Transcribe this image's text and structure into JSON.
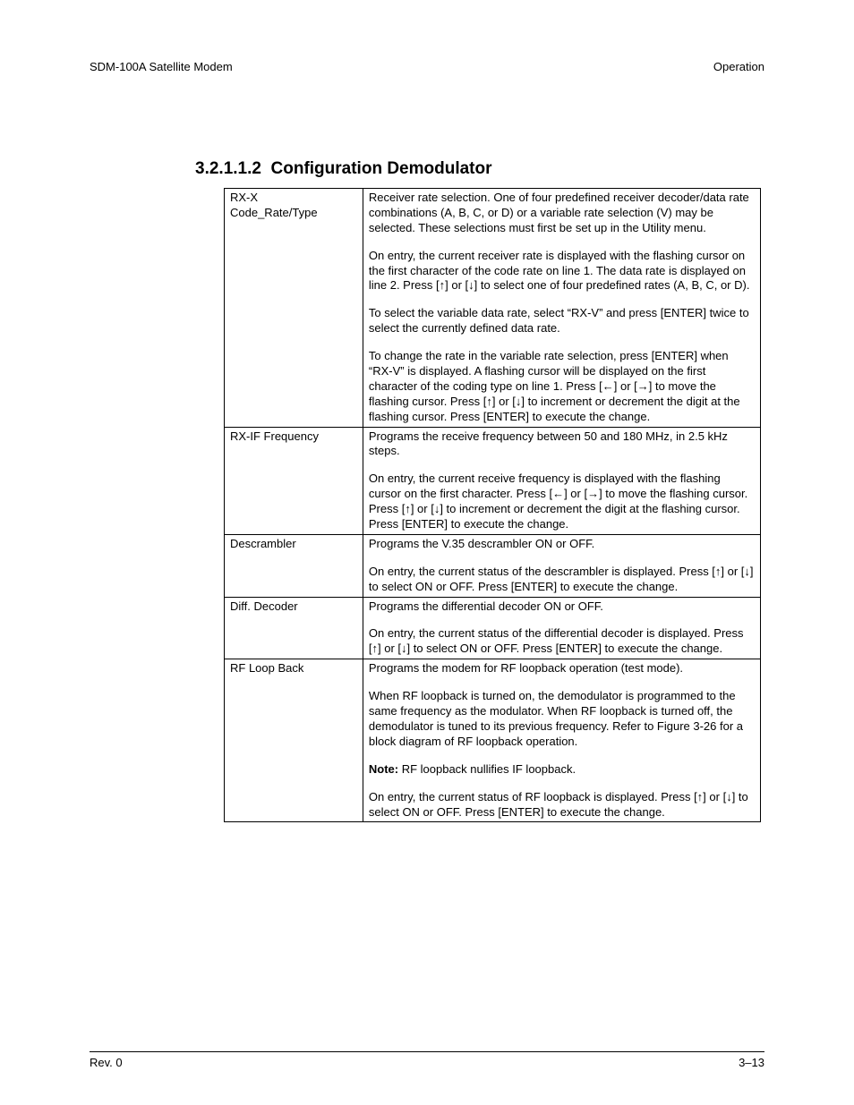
{
  "header": {
    "left": "SDM-100A Satellite Modem",
    "right": "Operation"
  },
  "section": {
    "number": "3.2.1.1.2",
    "title": "Configuration Demodulator"
  },
  "rows": [
    {
      "label": "RX-X\nCode_Rate/Type",
      "paragraphs": [
        "Receiver rate selection. One of four predefined receiver decoder/data rate combinations (A, B, C, or D) or a variable rate selection (V) may be selected. These selections must first be set up in the Utility menu.",
        "On entry, the current receiver rate is displayed with the flashing cursor on the first character of the code rate on line 1. The data rate is displayed on line 2. Press [↑] or [↓] to select one of four predefined rates (A, B, C, or D).",
        "To select the variable data rate, select “RX-V” and press [ENTER] twice to select the currently defined data rate.",
        "To change the rate in the variable rate selection, press [ENTER] when “RX-V” is displayed. A flashing cursor will be displayed on the first character of the coding type on line 1. Press [←] or [→] to move the flashing cursor. Press [↑] or [↓] to increment or decrement the digit at the flashing cursor. Press [ENTER] to execute the change."
      ]
    },
    {
      "label": "RX-IF Frequency",
      "paragraphs": [
        "Programs the receive frequency between 50 and 180 MHz, in 2.5 kHz steps.",
        "On entry, the current receive frequency is displayed with the flashing cursor on the first character. Press [←] or [→] to move the flashing cursor. Press [↑] or [↓] to increment or decrement the digit at the flashing cursor. Press [ENTER] to execute the change."
      ]
    },
    {
      "label": "Descrambler",
      "paragraphs": [
        "Programs the V.35 descrambler ON or OFF.",
        "On entry, the current status of the descrambler is displayed. Press [↑] or [↓] to select ON or OFF. Press [ENTER] to execute the change."
      ]
    },
    {
      "label": "Diff. Decoder",
      "paragraphs": [
        "Programs the differential decoder ON or OFF.",
        "On entry, the current status of the differential decoder is displayed. Press [↑] or [↓] to select ON or OFF. Press [ENTER] to execute the change."
      ]
    },
    {
      "label": "RF Loop Back",
      "paragraphs": [
        "Programs the modem for RF loopback operation (test mode).",
        "When RF loopback is turned on, the demodulator is programmed to the same frequency as the modulator. When RF loopback is turned off, the demodulator is tuned to its previous frequency. Refer to Figure 3-26 for a block diagram of RF loopback operation.",
        "<b>Note:</b> RF loopback nullifies IF loopback.",
        "On entry, the current status of RF loopback is displayed. Press [↑] or [↓] to select ON or OFF. Press [ENTER] to execute the change."
      ]
    }
  ],
  "footer": {
    "left": "Rev. 0",
    "right": "3–13"
  }
}
